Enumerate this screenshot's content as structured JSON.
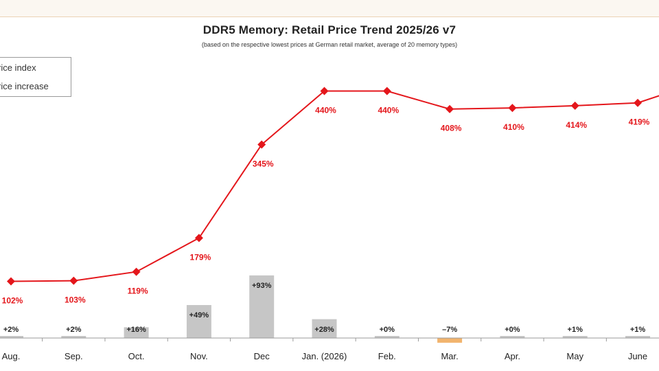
{
  "chart_data": {
    "type": "line",
    "title": "DDR5 Memory: Retail Price Trend 2025/26 v7",
    "subtitle": "(based on the respective lowest prices at German retail market, average of 20 memory types)",
    "legend": [
      "rice index",
      "rice increase"
    ],
    "legend_placement": "top-left",
    "categories": [
      "Aug.",
      "Sep.",
      "Oct.",
      "Nov.",
      "Dec",
      "Jan. (2026)",
      "Feb.",
      "Mar.",
      "Apr.",
      "May",
      "June"
    ],
    "series": [
      {
        "name": "rice index",
        "type": "line",
        "values": [
          102,
          103,
          119,
          179,
          345,
          440,
          440,
          408,
          410,
          414,
          419
        ],
        "labels": [
          "102%",
          "103%",
          "119%",
          "179%",
          "345%",
          "440%",
          "440%",
          "408%",
          "410%",
          "414%",
          "419%"
        ],
        "extends_past_right_edge": true,
        "color": "#e4161b"
      },
      {
        "name": "rice increase",
        "type": "bar",
        "values": [
          2,
          2,
          16,
          49,
          93,
          28,
          0,
          -7,
          0,
          1,
          1
        ],
        "labels": [
          "+2%",
          "+2%",
          "+16%",
          "+49%",
          "+93%",
          "+28%",
          "+0%",
          "–7%",
          "+0%",
          "+1%",
          "+1%"
        ],
        "color": "#c6c6c6",
        "negative_color": "#f2b46d"
      }
    ],
    "grid": false
  }
}
